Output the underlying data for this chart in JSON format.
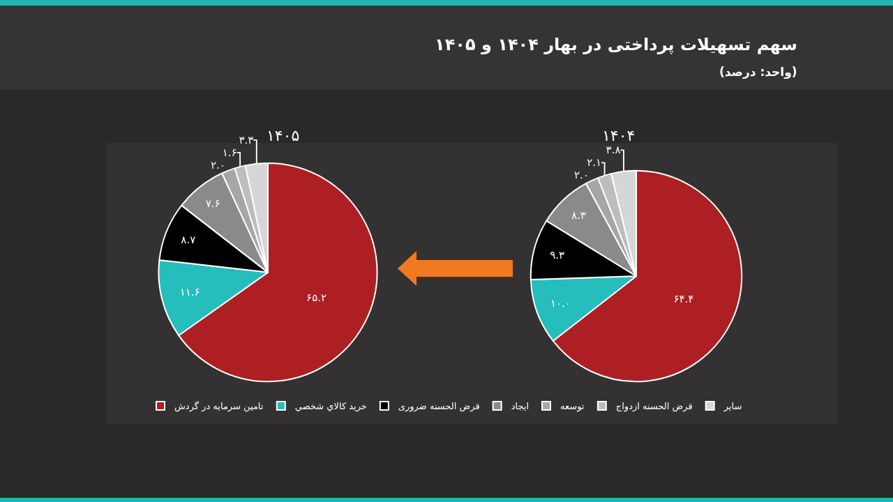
{
  "chart_data": {
    "type": "pie",
    "title": "سهم تسهیلات پرداختی در بهار ۱۴۰۴ و ۱۴۰۵",
    "subtitle": "(واحد: درصد)",
    "categories": [
      "تامین سرمایه در گردش",
      "خريد كالاي شخصي",
      "قرض الحسنه ضروری",
      "ایجاد",
      "توسعه",
      "قرض الحسنه ازدواج",
      "سایر"
    ],
    "colors": [
      "#ae1f24",
      "#26bdbd",
      "#000000",
      "#8a8a8a",
      "#a6a6a6",
      "#bdbdbd",
      "#d6d6d6"
    ],
    "series": [
      {
        "name": "۱۴۰۴",
        "values": [
          64.4,
          10.0,
          9.3,
          8.3,
          2.0,
          2.1,
          3.8
        ],
        "value_labels": [
          "۶۴.۴",
          "۱۰.۰",
          "۹.۳",
          "۸.۳",
          "۲.۰",
          "۲.۱",
          "۳.۸"
        ]
      },
      {
        "name": "۱۴۰۵",
        "values": [
          65.2,
          11.6,
          8.7,
          7.6,
          2.0,
          1.6,
          3.3
        ],
        "value_labels": [
          "۶۵.۲",
          "۱۱.۶",
          "۸.۷",
          "۷.۶",
          "۲.۰",
          "۱.۶",
          "۳.۳"
        ]
      }
    ],
    "legend": "bottom"
  }
}
